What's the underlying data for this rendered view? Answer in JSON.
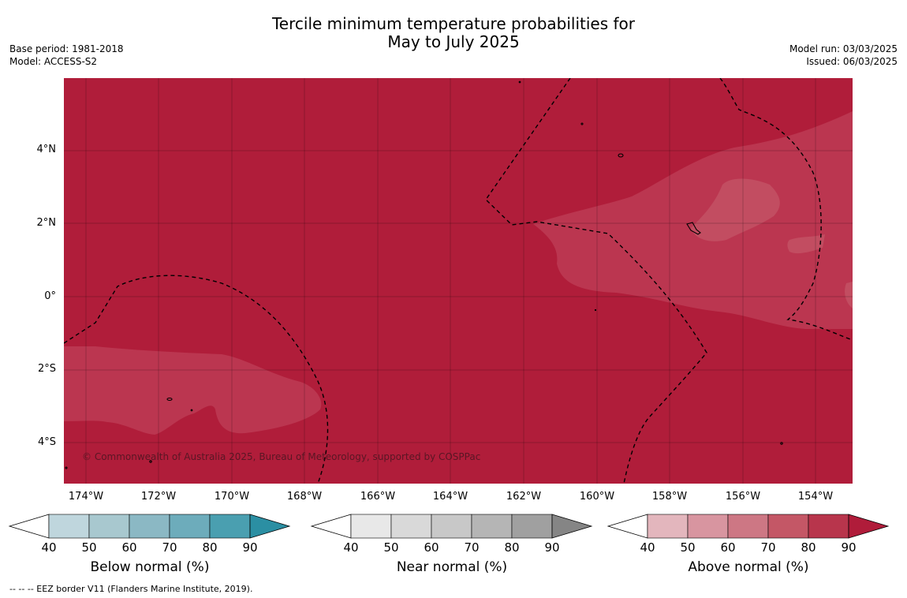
{
  "title_line1": "Tercile minimum temperature probabilities for",
  "title_line2": "May to July 2025",
  "base_period": "Base period: 1981-2018",
  "model": "Model: ACCESS-S2",
  "model_run": "Model run: 03/03/2025",
  "issued": "Issued: 06/03/2025",
  "latitude_labels": [
    "4°N",
    "2°N",
    "0°",
    "2°S",
    "4°S"
  ],
  "longitude_labels": [
    "174°W",
    "172°W",
    "170°W",
    "168°W",
    "166°W",
    "164°W",
    "162°W",
    "160°W",
    "158°W",
    "156°W",
    "154°W"
  ],
  "copyright": "© Commonwealth of Australia 2025, Bureau of Meteorology, supported by COSPPac",
  "colorbars": [
    {
      "label": "Below normal (%)",
      "ticks": [
        "40",
        "50",
        "60",
        "70",
        "80",
        "90"
      ],
      "colors": [
        "#bfd6dd",
        "#a8c8cf",
        "#8bb8c4",
        "#6dacbb",
        "#4a9fb0",
        "#2b8fa3"
      ]
    },
    {
      "label": "Near normal (%)",
      "ticks": [
        "40",
        "50",
        "60",
        "70",
        "80",
        "90"
      ],
      "colors": [
        "#e8e8e8",
        "#d9d9d9",
        "#c8c8c8",
        "#b5b5b5",
        "#a0a0a0",
        "#858585"
      ]
    },
    {
      "label": "Above normal (%)",
      "ticks": [
        "40",
        "50",
        "60",
        "70",
        "80",
        "90"
      ],
      "colors": [
        "#e3b6bd",
        "#d895a0",
        "#cd7784",
        "#c45766",
        "#b8354c",
        "#b01c3a"
      ]
    }
  ],
  "footer": "--  --  -- EEZ border V11 (Flanders Marine Institute, 2019).",
  "map_colors": {
    "dominant": "#b01d3a",
    "lighter": "#bb3650",
    "lightest": "#c24d61"
  }
}
